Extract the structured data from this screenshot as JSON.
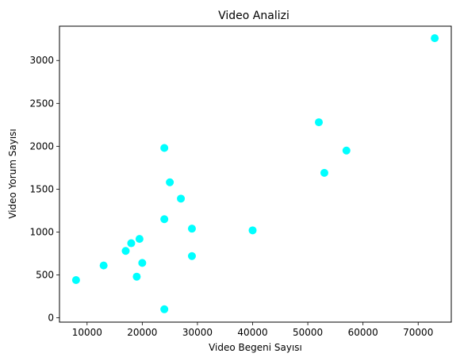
{
  "chart_data": {
    "type": "scatter",
    "title": "Video Analizi",
    "xlabel": "Video Begeni Sayısı",
    "ylabel": "Video Yorum Sayısı",
    "xlim": [
      5000,
      76000
    ],
    "ylim": [
      -50,
      3400
    ],
    "x_ticks": [
      10000,
      20000,
      30000,
      40000,
      50000,
      60000,
      70000
    ],
    "y_ticks": [
      0,
      500,
      1000,
      1500,
      2000,
      2500,
      3000
    ],
    "grid": false,
    "point_color": "#00ffff",
    "series": [
      {
        "points": [
          {
            "x": 8000,
            "y": 440
          },
          {
            "x": 13000,
            "y": 610
          },
          {
            "x": 17000,
            "y": 780
          },
          {
            "x": 18000,
            "y": 870
          },
          {
            "x": 19000,
            "y": 480
          },
          {
            "x": 19500,
            "y": 920
          },
          {
            "x": 20000,
            "y": 640
          },
          {
            "x": 24000,
            "y": 1980
          },
          {
            "x": 24000,
            "y": 1150
          },
          {
            "x": 24000,
            "y": 100
          },
          {
            "x": 25000,
            "y": 1580
          },
          {
            "x": 27000,
            "y": 1390
          },
          {
            "x": 29000,
            "y": 1040
          },
          {
            "x": 29000,
            "y": 720
          },
          {
            "x": 40000,
            "y": 1020
          },
          {
            "x": 52000,
            "y": 2280
          },
          {
            "x": 53000,
            "y": 1690
          },
          {
            "x": 57000,
            "y": 1950
          },
          {
            "x": 73000,
            "y": 3260
          }
        ]
      }
    ]
  }
}
